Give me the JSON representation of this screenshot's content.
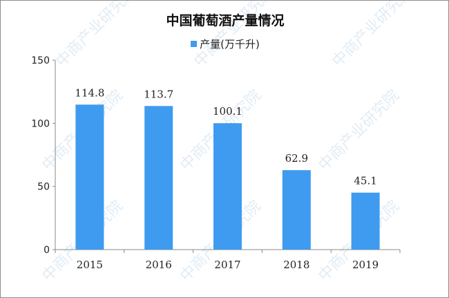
{
  "watermark": "中商产业研究院",
  "chart_data": {
    "type": "bar",
    "title": "中国葡萄酒产量情况",
    "categories": [
      "2015",
      "2016",
      "2017",
      "2018",
      "2019"
    ],
    "series": [
      {
        "name": "产量(万千升)",
        "values": [
          114.8,
          113.7,
          100.1,
          62.9,
          45.1
        ],
        "color": "#3e9bf0"
      }
    ],
    "data_labels": [
      "114.8",
      "113.7",
      "100.1",
      "62.9",
      "45.1"
    ],
    "ylim": [
      0,
      150
    ],
    "yticks": [
      "0",
      "50",
      "100",
      "150"
    ],
    "grid": false,
    "legend_position": "top"
  }
}
